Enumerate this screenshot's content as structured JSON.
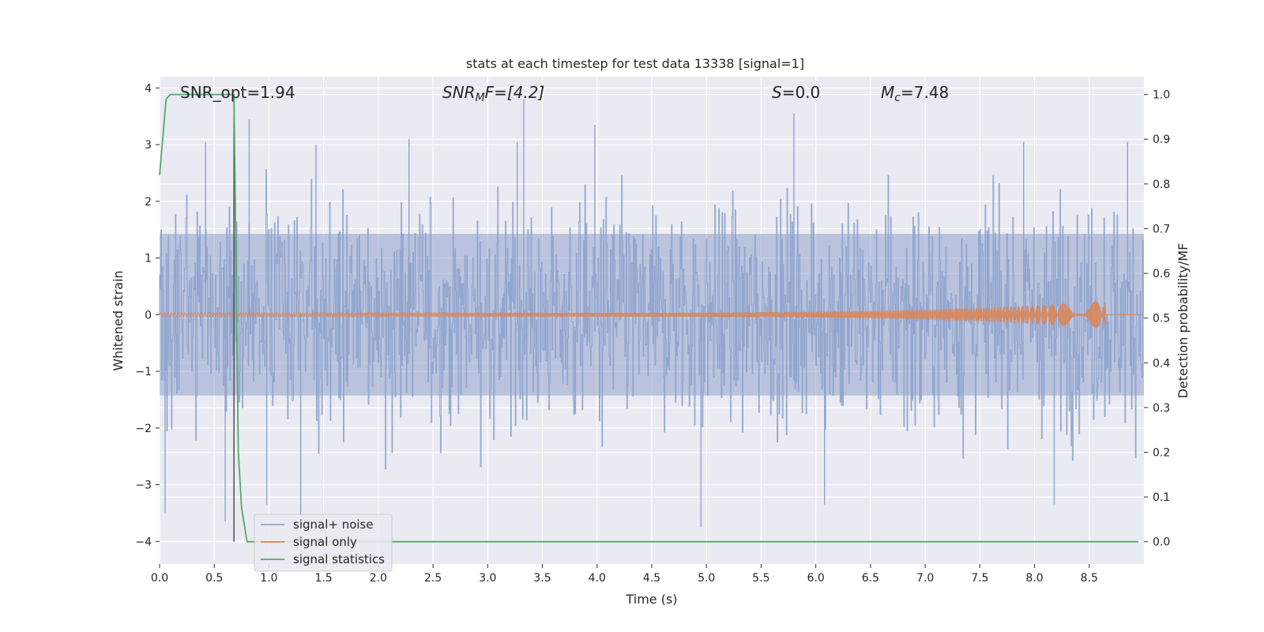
{
  "chart_data": {
    "type": "line",
    "title": "stats at each timestep for test data 13338 [signal=1]",
    "xlabel": "Time (s)",
    "ylabel_left": "Whitened strain",
    "ylabel_right": "Detection probability/MF",
    "xlim": [
      0.0,
      9.0
    ],
    "ylim_left": [
      -4.4,
      4.2
    ],
    "ylim_right": [
      -0.05,
      1.04
    ],
    "grid": true,
    "legend_position": "lower-left",
    "xticks": [
      {
        "value": 0.0,
        "label": "0.0"
      },
      {
        "value": 0.5,
        "label": "0.5"
      },
      {
        "value": 1.0,
        "label": "1.0"
      },
      {
        "value": 1.5,
        "label": "1.5"
      },
      {
        "value": 2.0,
        "label": "2.0"
      },
      {
        "value": 2.5,
        "label": "2.5"
      },
      {
        "value": 3.0,
        "label": "3.0"
      },
      {
        "value": 3.5,
        "label": "3.5"
      },
      {
        "value": 4.0,
        "label": "4.0"
      },
      {
        "value": 4.5,
        "label": "4.5"
      },
      {
        "value": 5.0,
        "label": "5.0"
      },
      {
        "value": 5.5,
        "label": "5.5"
      },
      {
        "value": 6.0,
        "label": "6.0"
      },
      {
        "value": 6.5,
        "label": "6.5"
      },
      {
        "value": 7.0,
        "label": "7.0"
      },
      {
        "value": 7.5,
        "label": "7.5"
      },
      {
        "value": 8.0,
        "label": "8.0"
      },
      {
        "value": 8.5,
        "label": "8.5"
      }
    ],
    "yticks_left": [
      {
        "value": 4,
        "label": "4"
      },
      {
        "value": 3,
        "label": "3"
      },
      {
        "value": 2,
        "label": "2"
      },
      {
        "value": 1,
        "label": "1"
      },
      {
        "value": 0,
        "label": "0"
      },
      {
        "value": -1,
        "label": "−1"
      },
      {
        "value": -2,
        "label": "−2"
      },
      {
        "value": -3,
        "label": "−3"
      },
      {
        "value": -4,
        "label": "−4"
      }
    ],
    "yticks_right": [
      {
        "value": 1.0,
        "label": "1.0"
      },
      {
        "value": 0.9,
        "label": "0.9"
      },
      {
        "value": 0.8,
        "label": "0.8"
      },
      {
        "value": 0.7,
        "label": "0.7"
      },
      {
        "value": 0.6,
        "label": "0.6"
      },
      {
        "value": 0.5,
        "label": "0.5"
      },
      {
        "value": 0.4,
        "label": "0.4"
      },
      {
        "value": 0.3,
        "label": "0.3"
      },
      {
        "value": 0.2,
        "label": "0.2"
      },
      {
        "value": 0.1,
        "label": "0.1"
      },
      {
        "value": 0.0,
        "label": "0.0"
      }
    ],
    "annotations": {
      "snr_opt": "SNR_opt=1.94",
      "snr_mf_base": "SNR",
      "snr_mf_sub": "M",
      "snr_mf_rest": "F=[4.2]",
      "s_label": "S",
      "s_value": "=0.0",
      "mc_base": "M",
      "mc_sub": "c",
      "mc_value": "=7.48"
    },
    "vertical_marker_x": 0.68,
    "series": [
      {
        "name": "signal+ noise",
        "color": "#8fa3cc",
        "axis": "left",
        "kind": "noise",
        "x_range": [
          0.0,
          9.0
        ],
        "core_amplitude": 1.9,
        "spikes": [
          {
            "x": 0.05,
            "y": -3.5
          },
          {
            "x": 0.42,
            "y": 3.05
          },
          {
            "x": 0.6,
            "y": -3.65
          },
          {
            "x": 0.82,
            "y": 3.45
          },
          {
            "x": 0.98,
            "y": -3.35
          },
          {
            "x": 1.29,
            "y": -3.55
          },
          {
            "x": 1.43,
            "y": 3.0
          },
          {
            "x": 2.28,
            "y": 3.1
          },
          {
            "x": 3.27,
            "y": 3.05
          },
          {
            "x": 3.33,
            "y": 3.8
          },
          {
            "x": 3.98,
            "y": 3.35
          },
          {
            "x": 4.95,
            "y": -3.75
          },
          {
            "x": 5.8,
            "y": 3.55
          },
          {
            "x": 6.08,
            "y": -3.35
          },
          {
            "x": 7.9,
            "y": 3.05
          },
          {
            "x": 8.18,
            "y": -3.35
          },
          {
            "x": 8.85,
            "y": 3.05
          }
        ]
      },
      {
        "name": "signal only",
        "color": "#dd8452",
        "axis": "left",
        "kind": "chirp",
        "x_range": [
          0.0,
          9.0
        ],
        "start_amplitude": 0.03,
        "peak_x": 8.65,
        "peak_amplitude": 0.25
      },
      {
        "name": "signal statistics",
        "color": "#55a868",
        "axis": "right",
        "x": [
          0.0,
          0.06,
          0.1,
          0.68,
          0.72,
          0.75,
          0.8,
          8.95
        ],
        "y": [
          0.82,
          0.99,
          1.0,
          1.0,
          0.2,
          0.075,
          0.0,
          0.0
        ]
      }
    ]
  }
}
